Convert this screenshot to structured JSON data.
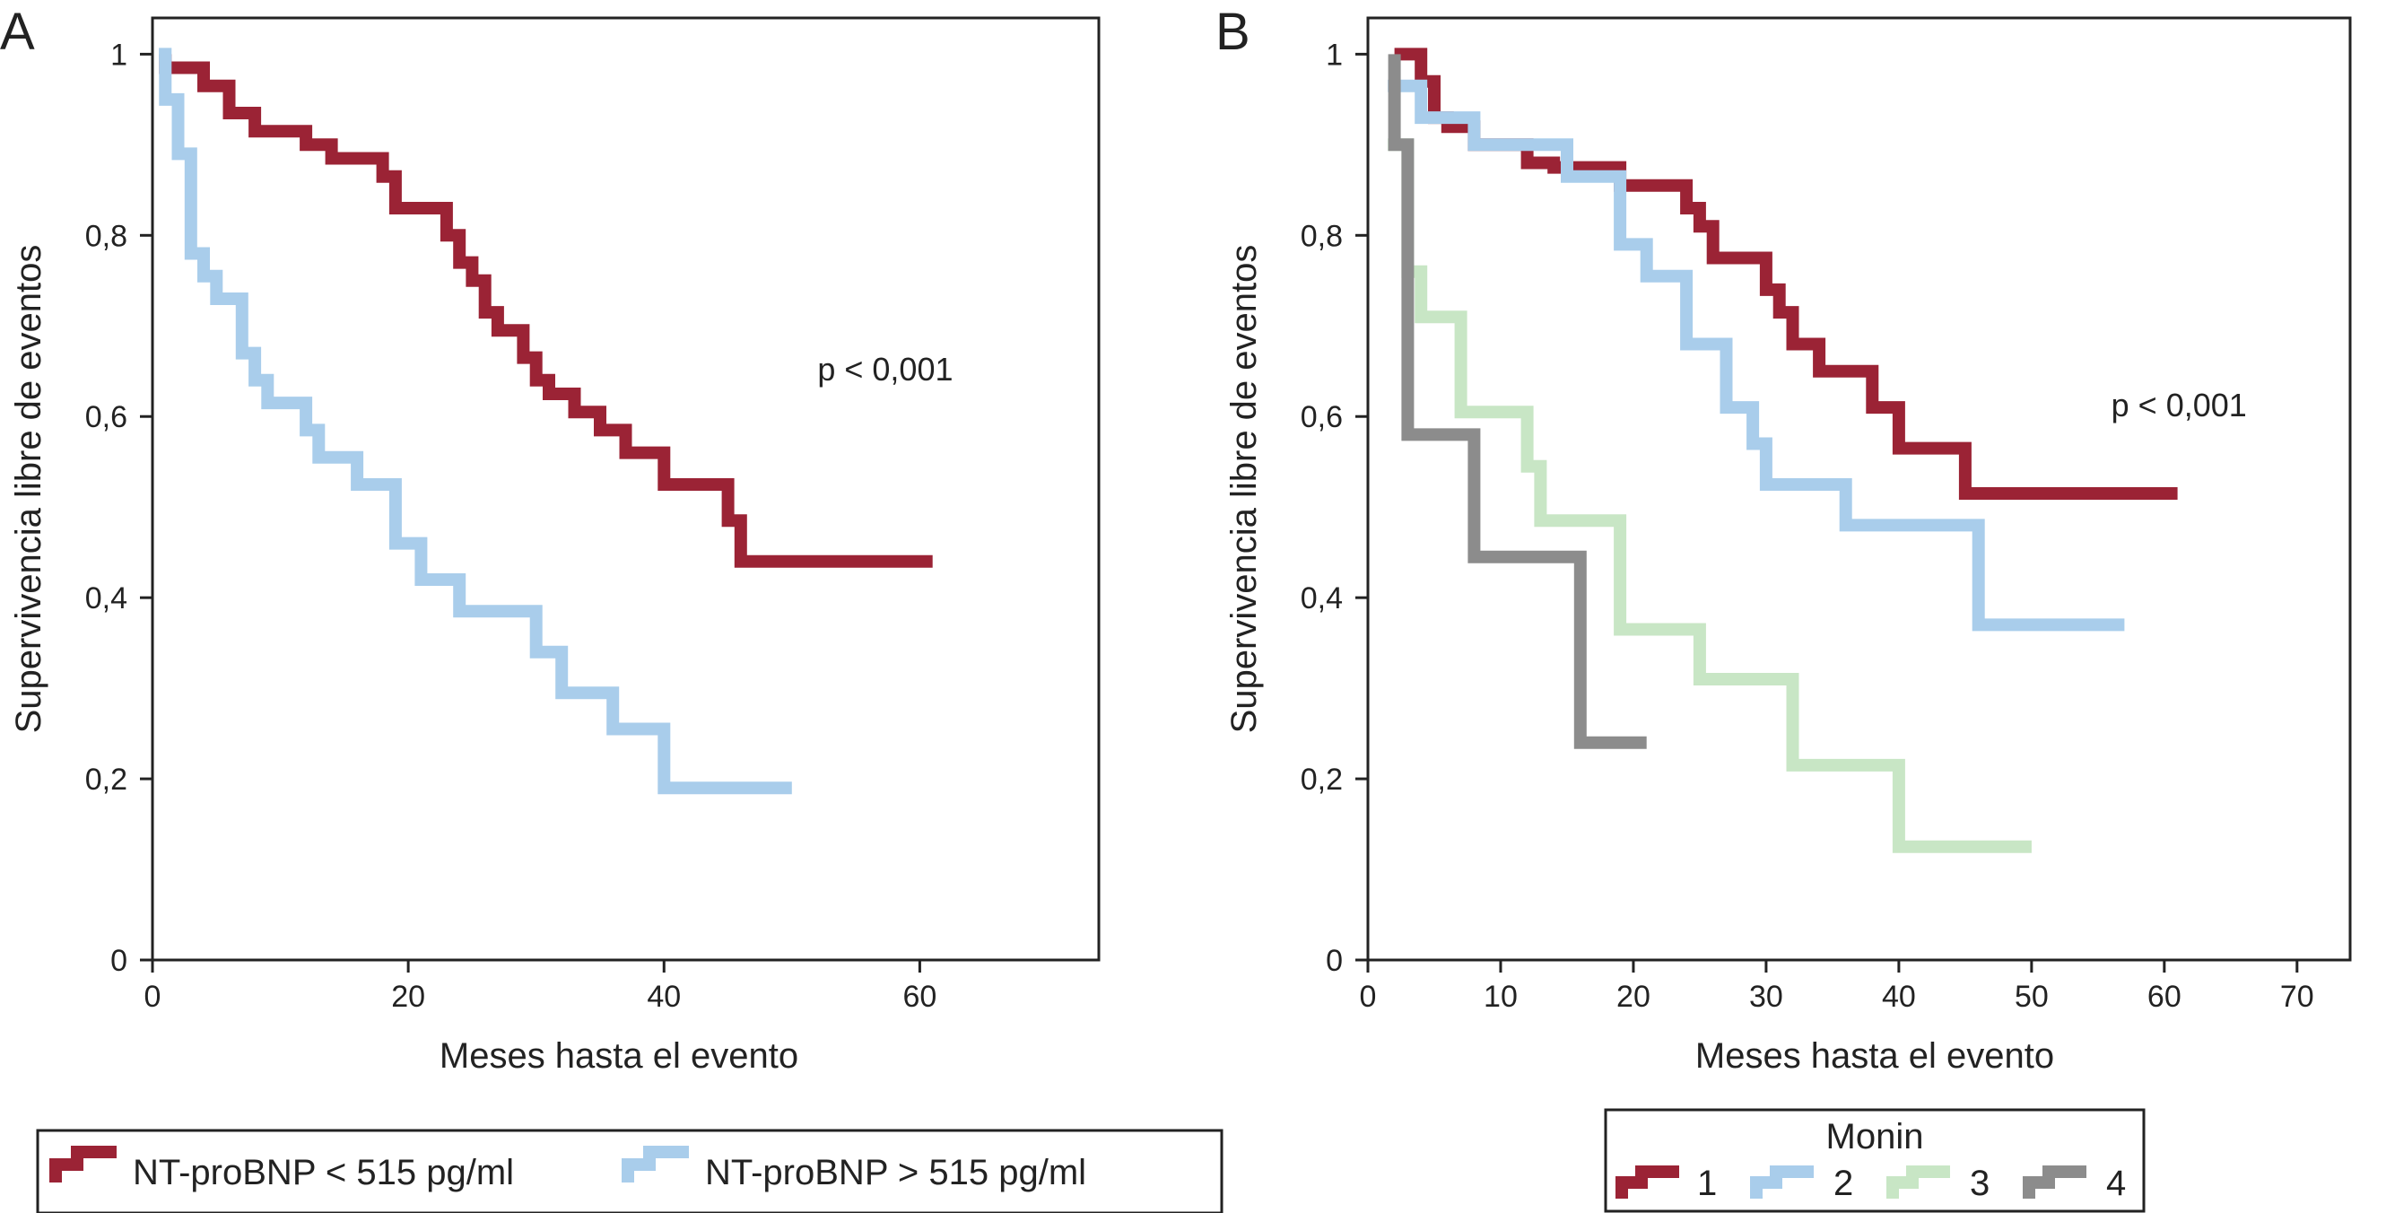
{
  "colors": {
    "dark_red": "#9B2335",
    "light_blue": "#A9CDEB",
    "light_green": "#C8E6C5",
    "gray": "#8C8C8C",
    "frame": "#222222"
  },
  "chart_data": [
    {
      "panel_label": "A",
      "type": "line",
      "subtype": "kaplan-meier step",
      "xlabel": "Meses hasta el evento",
      "ylabel": "Supervivencia libre de eventos",
      "xlim": [
        0,
        74
      ],
      "ylim": [
        0,
        1.04
      ],
      "xticks": [
        0,
        20,
        40,
        60
      ],
      "xtick_labels": [
        "0",
        "20",
        "40",
        "60"
      ],
      "yticks": [
        0,
        0.2,
        0.4,
        0.6,
        0.8,
        1
      ],
      "ytick_labels": [
        "0",
        "0,2",
        "0,4",
        "0,6",
        "0,8",
        "1"
      ],
      "annotation": "p < 0,001",
      "annotation_at": [
        52,
        0.64
      ],
      "legend": {
        "title": "",
        "placement": "bottom-left",
        "entries": [
          "NT-proBNP < 515 pg/ml",
          "NT-proBNP > 515 pg/ml"
        ]
      },
      "series": [
        {
          "name": "NT-proBNP < 515 pg/ml",
          "color_key": "dark_red",
          "points": [
            [
              1,
              1
            ],
            [
              1,
              0.985
            ],
            [
              4,
              0.985
            ],
            [
              4,
              0.965
            ],
            [
              6,
              0.965
            ],
            [
              6,
              0.935
            ],
            [
              8,
              0.935
            ],
            [
              8,
              0.915
            ],
            [
              12,
              0.915
            ],
            [
              12,
              0.9
            ],
            [
              14,
              0.9
            ],
            [
              14,
              0.885
            ],
            [
              18,
              0.885
            ],
            [
              18,
              0.865
            ],
            [
              19,
              0.865
            ],
            [
              19,
              0.83
            ],
            [
              23,
              0.83
            ],
            [
              23,
              0.8
            ],
            [
              24,
              0.8
            ],
            [
              24,
              0.77
            ],
            [
              25,
              0.77
            ],
            [
              25,
              0.75
            ],
            [
              26,
              0.75
            ],
            [
              26,
              0.715
            ],
            [
              27,
              0.715
            ],
            [
              27,
              0.695
            ],
            [
              29,
              0.695
            ],
            [
              29,
              0.665
            ],
            [
              30,
              0.665
            ],
            [
              30,
              0.64
            ],
            [
              31,
              0.64
            ],
            [
              31,
              0.625
            ],
            [
              33,
              0.625
            ],
            [
              33,
              0.605
            ],
            [
              35,
              0.605
            ],
            [
              35,
              0.585
            ],
            [
              37,
              0.585
            ],
            [
              37,
              0.56
            ],
            [
              40,
              0.56
            ],
            [
              40,
              0.525
            ],
            [
              45,
              0.525
            ],
            [
              45,
              0.485
            ],
            [
              46,
              0.485
            ],
            [
              46,
              0.44
            ],
            [
              61,
              0.44
            ]
          ]
        },
        {
          "name": "NT-proBNP > 515 pg/ml",
          "color_key": "light_blue",
          "points": [
            [
              0.5,
              1
            ],
            [
              1,
              1
            ],
            [
              1,
              0.95
            ],
            [
              2,
              0.95
            ],
            [
              2,
              0.89
            ],
            [
              3,
              0.89
            ],
            [
              3,
              0.78
            ],
            [
              4,
              0.78
            ],
            [
              4,
              0.755
            ],
            [
              5,
              0.755
            ],
            [
              5,
              0.73
            ],
            [
              7,
              0.73
            ],
            [
              7,
              0.67
            ],
            [
              8,
              0.67
            ],
            [
              8,
              0.64
            ],
            [
              9,
              0.64
            ],
            [
              9,
              0.615
            ],
            [
              12,
              0.615
            ],
            [
              12,
              0.585
            ],
            [
              13,
              0.585
            ],
            [
              13,
              0.555
            ],
            [
              16,
              0.555
            ],
            [
              16,
              0.525
            ],
            [
              19,
              0.525
            ],
            [
              19,
              0.46
            ],
            [
              21,
              0.46
            ],
            [
              21,
              0.42
            ],
            [
              24,
              0.42
            ],
            [
              24,
              0.385
            ],
            [
              30,
              0.385
            ],
            [
              30,
              0.34
            ],
            [
              32,
              0.34
            ],
            [
              32,
              0.295
            ],
            [
              36,
              0.295
            ],
            [
              36,
              0.255
            ],
            [
              40,
              0.255
            ],
            [
              40,
              0.19
            ],
            [
              50,
              0.19
            ]
          ]
        }
      ]
    },
    {
      "panel_label": "B",
      "type": "line",
      "subtype": "kaplan-meier step",
      "xlabel": "Meses hasta el evento",
      "ylabel": "Supervivencia libre de eventos",
      "xlim": [
        0,
        74
      ],
      "ylim": [
        0,
        1.04
      ],
      "xticks": [
        0,
        10,
        20,
        30,
        40,
        50,
        60,
        70
      ],
      "xtick_labels": [
        "0",
        "10",
        "20",
        "30",
        "40",
        "50",
        "60",
        "70"
      ],
      "yticks": [
        0,
        0.2,
        0.4,
        0.6,
        0.8,
        1
      ],
      "ytick_labels": [
        "0",
        "0,2",
        "0,4",
        "0,6",
        "0,8",
        "1"
      ],
      "annotation": "p < 0,001",
      "annotation_at": [
        56,
        0.6
      ],
      "legend": {
        "title": "Monin",
        "placement": "bottom-center",
        "entries": [
          "1",
          "2",
          "3",
          "4"
        ]
      },
      "series": [
        {
          "name": "1",
          "color_key": "dark_red",
          "points": [
            [
              2,
              1
            ],
            [
              4,
              1
            ],
            [
              4,
              0.97
            ],
            [
              5,
              0.97
            ],
            [
              5,
              0.93
            ],
            [
              6,
              0.93
            ],
            [
              6,
              0.92
            ],
            [
              8,
              0.92
            ],
            [
              8,
              0.9
            ],
            [
              12,
              0.9
            ],
            [
              12,
              0.88
            ],
            [
              14,
              0.88
            ],
            [
              14,
              0.875
            ],
            [
              19,
              0.875
            ],
            [
              19,
              0.855
            ],
            [
              24,
              0.855
            ],
            [
              24,
              0.83
            ],
            [
              25,
              0.83
            ],
            [
              25,
              0.81
            ],
            [
              26,
              0.81
            ],
            [
              26,
              0.775
            ],
            [
              30,
              0.775
            ],
            [
              30,
              0.74
            ],
            [
              31,
              0.74
            ],
            [
              31,
              0.715
            ],
            [
              32,
              0.715
            ],
            [
              32,
              0.68
            ],
            [
              34,
              0.68
            ],
            [
              34,
              0.65
            ],
            [
              38,
              0.65
            ],
            [
              38,
              0.61
            ],
            [
              40,
              0.61
            ],
            [
              40,
              0.565
            ],
            [
              45,
              0.565
            ],
            [
              45,
              0.515
            ],
            [
              61,
              0.515
            ]
          ]
        },
        {
          "name": "2",
          "color_key": "light_blue",
          "points": [
            [
              1.5,
              0.965
            ],
            [
              4,
              0.965
            ],
            [
              4,
              0.93
            ],
            [
              8,
              0.93
            ],
            [
              8,
              0.9
            ],
            [
              15,
              0.9
            ],
            [
              15,
              0.865
            ],
            [
              19,
              0.865
            ],
            [
              19,
              0.79
            ],
            [
              21,
              0.79
            ],
            [
              21,
              0.755
            ],
            [
              24,
              0.755
            ],
            [
              24,
              0.68
            ],
            [
              27,
              0.68
            ],
            [
              27,
              0.61
            ],
            [
              29,
              0.61
            ],
            [
              29,
              0.57
            ],
            [
              30,
              0.57
            ],
            [
              30,
              0.525
            ],
            [
              36,
              0.525
            ],
            [
              36,
              0.48
            ],
            [
              46,
              0.48
            ],
            [
              46,
              0.37
            ],
            [
              57,
              0.37
            ]
          ]
        },
        {
          "name": "3",
          "color_key": "light_green",
          "points": [
            [
              1.5,
              0.9
            ],
            [
              3,
              0.9
            ],
            [
              3,
              0.76
            ],
            [
              4,
              0.76
            ],
            [
              4,
              0.71
            ],
            [
              7,
              0.71
            ],
            [
              7,
              0.605
            ],
            [
              12,
              0.605
            ],
            [
              12,
              0.545
            ],
            [
              13,
              0.545
            ],
            [
              13,
              0.485
            ],
            [
              19,
              0.485
            ],
            [
              19,
              0.365
            ],
            [
              25,
              0.365
            ],
            [
              25,
              0.31
            ],
            [
              32,
              0.31
            ],
            [
              32,
              0.215
            ],
            [
              40,
              0.215
            ],
            [
              40,
              0.125
            ],
            [
              50,
              0.125
            ]
          ]
        },
        {
          "name": "4",
          "color_key": "gray",
          "points": [
            [
              2,
              1
            ],
            [
              2,
              0.9
            ],
            [
              3,
              0.9
            ],
            [
              3,
              0.865
            ],
            [
              3,
              0.58
            ],
            [
              8,
              0.58
            ],
            [
              8,
              0.445
            ],
            [
              16,
              0.445
            ],
            [
              16,
              0.24
            ],
            [
              21,
              0.24
            ]
          ]
        }
      ]
    }
  ]
}
